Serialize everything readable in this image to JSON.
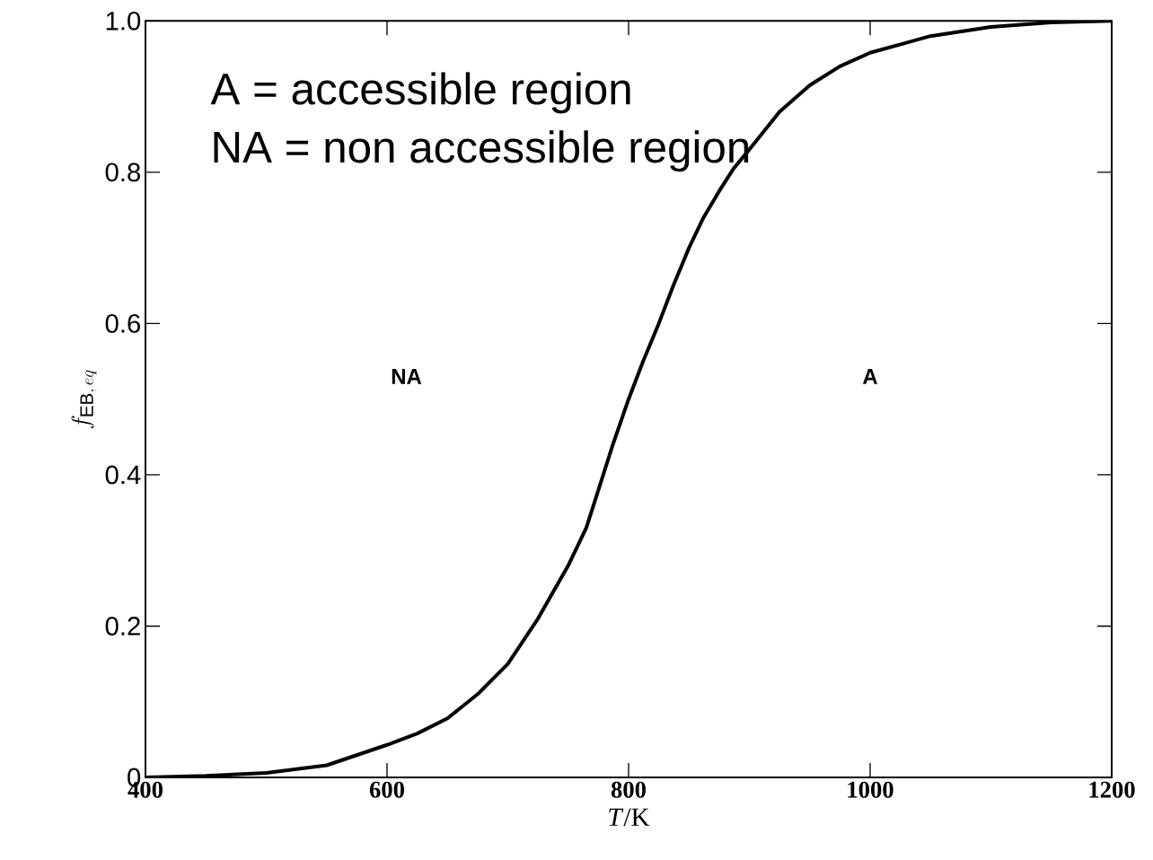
{
  "chart_data": {
    "type": "line",
    "xlabel": "*T*/K",
    "ylabel": "f_{\\mathrm{EB},\\,eq}",
    "annotations": [
      "A = accessible region",
      "NA = non accessible region",
      "NA",
      "A"
    ],
    "x": [
      400,
      450,
      500,
      550,
      600,
      625,
      650,
      675,
      700,
      725,
      750,
      765,
      775,
      787,
      800,
      812,
      825,
      837,
      850,
      862,
      875,
      887,
      900,
      925,
      950,
      975,
      1000,
      1050,
      1100,
      1150,
      1200
    ],
    "series": [
      {
        "color": "#000000",
        "values": [
          0.0,
          0.002,
          0.006,
          0.016,
          0.043,
          0.058,
          0.078,
          0.11,
          0.15,
          0.21,
          0.28,
          0.33,
          0.38,
          0.44,
          0.5,
          0.55,
          0.6,
          0.65,
          0.7,
          0.74,
          0.775,
          0.805,
          0.83,
          0.88,
          0.915,
          0.94,
          0.958,
          0.98,
          0.992,
          0.998,
          1.0
        ]
      }
    ],
    "xlim": [
      400,
      1200
    ],
    "ylim": [
      0,
      1
    ],
    "xticks": [
      400,
      600,
      800,
      1000,
      1200
    ],
    "yticks": [
      0,
      0.2,
      0.4,
      0.6,
      0.8,
      {
        "value": 1,
        "label": "1.0"
      }
    ],
    "grid": false,
    "marker": "none",
    "line_style": "solid"
  }
}
